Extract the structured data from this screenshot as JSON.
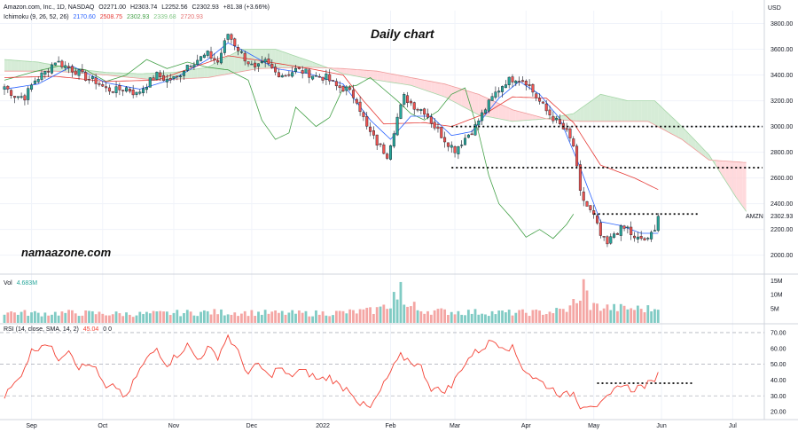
{
  "header": {
    "symbol_line": "Amazon.com, Inc., 1D, NASDAQ",
    "o": "O2271.00",
    "h": "H2303.74",
    "l": "L2252.56",
    "c": "C2302.93",
    "chg": "+81.38 (+3.66%)",
    "ichimoku_label": "Ichimoku (9, 26, 52, 26)",
    "ich_vals": [
      "2170.60",
      "2508.75",
      "2302.93",
      "2339.68",
      "2720.93"
    ],
    "ich_colors": [
      "#2962ff",
      "#e53935",
      "#43a047",
      "#a5d6a7",
      "#ef9a9a"
    ],
    "vol_label": "Vol",
    "vol_value": "4.683M",
    "rsi_label": "RSI (14, close, SMA, 14, 2)",
    "rsi_value": "45.04",
    "rsi_extra": "0  0"
  },
  "watermarks": {
    "title": "Daily chart",
    "site": "namaazone.com"
  },
  "colors": {
    "up": "#26a69a",
    "down": "#ef5350",
    "tenkan": "#2962ff",
    "kijun": "#e53935",
    "chikou": "#43a047",
    "cloud_up": "#c8e6c9",
    "cloud_down": "#ffcdd2",
    "rsi": "#f44336",
    "vol_up": "#80cbc4",
    "vol_down": "#f4a6a4"
  },
  "chart_data": {
    "type": "candlestick",
    "price_axis": {
      "unit": "USD",
      "ticks": [
        2000,
        2200,
        2400,
        2600,
        2800,
        3000,
        3200,
        3400,
        3600,
        3800
      ],
      "tick_labels": [
        "2000.00",
        "2200.00",
        "2400.00",
        "2600.00",
        "2800.00",
        "3000.00",
        "3200.00",
        "3400.00",
        "3600.00",
        "3800.00"
      ],
      "range": [
        1860,
        3900
      ]
    },
    "time_axis": {
      "labels": [
        "Sep",
        "Oct",
        "Nov",
        "Dec",
        "2022",
        "Feb",
        "Mar",
        "Apr",
        "May",
        "Jun",
        "Jul"
      ],
      "label_bars": [
        8,
        29,
        50,
        73,
        94,
        114,
        133,
        154,
        174,
        194,
        215
      ]
    },
    "last_price": {
      "value": 2302.93,
      "label": "2302.93",
      "symbol": "AMZN"
    },
    "volume_axis": {
      "ticks": [
        5,
        10,
        15
      ],
      "tick_labels": [
        "5M",
        "10M",
        "15M"
      ],
      "range": [
        0,
        17
      ]
    },
    "rsi_axis": {
      "ticks": [
        20,
        30,
        40,
        50,
        60,
        70
      ],
      "tick_labels": [
        "20.00",
        "30.00",
        "40.00",
        "50.00",
        "60.00",
        "70.00"
      ],
      "range": [
        15,
        75
      ],
      "bands": [
        30,
        50,
        70
      ]
    },
    "close_keypoints": [
      [
        0,
        3310
      ],
      [
        3,
        3240
      ],
      [
        6,
        3230
      ],
      [
        9,
        3360
      ],
      [
        12,
        3420
      ],
      [
        15,
        3510
      ],
      [
        18,
        3470
      ],
      [
        21,
        3430
      ],
      [
        24,
        3380
      ],
      [
        27,
        3350
      ],
      [
        30,
        3290
      ],
      [
        33,
        3280
      ],
      [
        36,
        3300
      ],
      [
        39,
        3250
      ],
      [
        42,
        3330
      ],
      [
        45,
        3400
      ],
      [
        48,
        3360
      ],
      [
        51,
        3380
      ],
      [
        54,
        3480
      ],
      [
        57,
        3520
      ],
      [
        60,
        3560
      ],
      [
        63,
        3500
      ],
      [
        66,
        3720
      ],
      [
        68,
        3640
      ],
      [
        71,
        3530
      ],
      [
        74,
        3440
      ],
      [
        77,
        3500
      ],
      [
        80,
        3420
      ],
      [
        83,
        3400
      ],
      [
        86,
        3440
      ],
      [
        89,
        3420
      ],
      [
        92,
        3390
      ],
      [
        95,
        3380
      ],
      [
        98,
        3310
      ],
      [
        101,
        3290
      ],
      [
        104,
        3210
      ],
      [
        107,
        2990
      ],
      [
        110,
        2870
      ],
      [
        113,
        2780
      ],
      [
        116,
        3070
      ],
      [
        118,
        3230
      ],
      [
        121,
        3160
      ],
      [
        124,
        3120
      ],
      [
        127,
        3000
      ],
      [
        130,
        2900
      ],
      [
        133,
        2820
      ],
      [
        136,
        2910
      ],
      [
        139,
        3000
      ],
      [
        142,
        3140
      ],
      [
        145,
        3260
      ],
      [
        148,
        3350
      ],
      [
        151,
        3380
      ],
      [
        154,
        3350
      ],
      [
        157,
        3230
      ],
      [
        160,
        3120
      ],
      [
        163,
        3040
      ],
      [
        166,
        2950
      ],
      [
        168,
        2850
      ],
      [
        170,
        2480
      ],
      [
        172,
        2380
      ],
      [
        174,
        2300
      ],
      [
        176,
        2150
      ],
      [
        178,
        2080
      ],
      [
        180,
        2170
      ],
      [
        182,
        2200
      ],
      [
        184,
        2210
      ],
      [
        186,
        2120
      ],
      [
        188,
        2130
      ],
      [
        190,
        2110
      ],
      [
        192,
        2220
      ],
      [
        193,
        2303
      ]
    ],
    "tenkan_keypoints": [
      [
        0,
        3290
      ],
      [
        10,
        3330
      ],
      [
        20,
        3470
      ],
      [
        30,
        3340
      ],
      [
        40,
        3290
      ],
      [
        50,
        3370
      ],
      [
        60,
        3520
      ],
      [
        66,
        3650
      ],
      [
        72,
        3570
      ],
      [
        80,
        3450
      ],
      [
        90,
        3410
      ],
      [
        100,
        3330
      ],
      [
        108,
        3050
      ],
      [
        114,
        2900
      ],
      [
        120,
        3080
      ],
      [
        126,
        3080
      ],
      [
        132,
        2930
      ],
      [
        138,
        2960
      ],
      [
        146,
        3220
      ],
      [
        152,
        3350
      ],
      [
        158,
        3250
      ],
      [
        164,
        3060
      ],
      [
        170,
        2680
      ],
      [
        176,
        2260
      ],
      [
        182,
        2230
      ],
      [
        188,
        2170
      ],
      [
        193,
        2170
      ]
    ],
    "kijun_keypoints": [
      [
        0,
        3380
      ],
      [
        15,
        3390
      ],
      [
        30,
        3350
      ],
      [
        45,
        3360
      ],
      [
        58,
        3480
      ],
      [
        66,
        3550
      ],
      [
        76,
        3510
      ],
      [
        90,
        3450
      ],
      [
        100,
        3400
      ],
      [
        106,
        3200
      ],
      [
        112,
        3020
      ],
      [
        124,
        3030
      ],
      [
        132,
        3000
      ],
      [
        142,
        3100
      ],
      [
        150,
        3230
      ],
      [
        160,
        3220
      ],
      [
        168,
        3030
      ],
      [
        176,
        2700
      ],
      [
        186,
        2600
      ],
      [
        193,
        2510
      ]
    ],
    "chikou_keypoints": [
      [
        0,
        3360
      ],
      [
        8,
        3420
      ],
      [
        16,
        3470
      ],
      [
        24,
        3440
      ],
      [
        30,
        3350
      ],
      [
        36,
        3400
      ],
      [
        42,
        3520
      ],
      [
        48,
        3450
      ],
      [
        54,
        3500
      ],
      [
        60,
        3460
      ],
      [
        66,
        3440
      ],
      [
        72,
        3360
      ],
      [
        76,
        3050
      ],
      [
        80,
        2900
      ],
      [
        84,
        2950
      ],
      [
        86,
        3150
      ],
      [
        92,
        3000
      ],
      [
        96,
        3070
      ],
      [
        100,
        3300
      ],
      [
        104,
        3320
      ],
      [
        108,
        3380
      ],
      [
        112,
        3290
      ],
      [
        116,
        3200
      ],
      [
        120,
        3100
      ],
      [
        124,
        3050
      ],
      [
        128,
        3120
      ],
      [
        132,
        3250
      ],
      [
        136,
        3300
      ],
      [
        140,
        2950
      ],
      [
        143,
        2620
      ],
      [
        146,
        2400
      ],
      [
        150,
        2280
      ],
      [
        154,
        2140
      ],
      [
        158,
        2200
      ],
      [
        162,
        2130
      ],
      [
        166,
        2240
      ],
      [
        168,
        2320
      ]
    ],
    "spanA_keypoints": [
      [
        0,
        3520
      ],
      [
        10,
        3500
      ],
      [
        20,
        3450
      ],
      [
        30,
        3420
      ],
      [
        40,
        3410
      ],
      [
        50,
        3420
      ],
      [
        60,
        3460
      ],
      [
        70,
        3600
      ],
      [
        80,
        3600
      ],
      [
        90,
        3510
      ],
      [
        100,
        3410
      ],
      [
        110,
        3360
      ],
      [
        120,
        3320
      ],
      [
        130,
        3230
      ],
      [
        140,
        3090
      ],
      [
        150,
        3040
      ],
      [
        160,
        3060
      ],
      [
        168,
        3100
      ],
      [
        176,
        3250
      ],
      [
        184,
        3200
      ],
      [
        192,
        3200
      ],
      [
        200,
        3000
      ],
      [
        208,
        2780
      ],
      [
        216,
        2450
      ],
      [
        219,
        2340
      ]
    ],
    "spanB_keypoints": [
      [
        0,
        3430
      ],
      [
        15,
        3430
      ],
      [
        30,
        3400
      ],
      [
        45,
        3360
      ],
      [
        60,
        3380
      ],
      [
        75,
        3450
      ],
      [
        90,
        3460
      ],
      [
        100,
        3450
      ],
      [
        110,
        3430
      ],
      [
        120,
        3380
      ],
      [
        130,
        3330
      ],
      [
        140,
        3250
      ],
      [
        150,
        3130
      ],
      [
        160,
        3060
      ],
      [
        170,
        3040
      ],
      [
        180,
        3040
      ],
      [
        190,
        3040
      ],
      [
        200,
        2900
      ],
      [
        208,
        2740
      ],
      [
        219,
        2720
      ]
    ],
    "rsi_keypoints": [
      [
        0,
        30
      ],
      [
        4,
        40
      ],
      [
        8,
        58
      ],
      [
        12,
        64
      ],
      [
        16,
        54
      ],
      [
        19,
        60
      ],
      [
        22,
        48
      ],
      [
        26,
        50
      ],
      [
        30,
        34
      ],
      [
        33,
        36
      ],
      [
        36,
        28
      ],
      [
        39,
        43
      ],
      [
        42,
        53
      ],
      [
        45,
        60
      ],
      [
        48,
        50
      ],
      [
        51,
        56
      ],
      [
        54,
        62
      ],
      [
        57,
        53
      ],
      [
        60,
        60
      ],
      [
        63,
        55
      ],
      [
        66,
        68
      ],
      [
        69,
        57
      ],
      [
        72,
        44
      ],
      [
        75,
        50
      ],
      [
        78,
        42
      ],
      [
        81,
        48
      ],
      [
        84,
        42
      ],
      [
        87,
        46
      ],
      [
        90,
        44
      ],
      [
        93,
        40
      ],
      [
        96,
        42
      ],
      [
        99,
        36
      ],
      [
        102,
        34
      ],
      [
        105,
        25
      ],
      [
        108,
        22
      ],
      [
        111,
        33
      ],
      [
        114,
        45
      ],
      [
        117,
        55
      ],
      [
        120,
        52
      ],
      [
        123,
        48
      ],
      [
        126,
        35
      ],
      [
        129,
        33
      ],
      [
        132,
        36
      ],
      [
        135,
        48
      ],
      [
        138,
        56
      ],
      [
        141,
        60
      ],
      [
        144,
        65
      ],
      [
        147,
        62
      ],
      [
        150,
        60
      ],
      [
        153,
        48
      ],
      [
        156,
        42
      ],
      [
        159,
        38
      ],
      [
        162,
        34
      ],
      [
        165,
        30
      ],
      [
        168,
        32
      ],
      [
        170,
        24
      ],
      [
        173,
        25
      ],
      [
        176,
        24
      ],
      [
        179,
        30
      ],
      [
        182,
        38
      ],
      [
        185,
        34
      ],
      [
        188,
        36
      ],
      [
        191,
        38
      ],
      [
        193,
        45
      ]
    ],
    "volume_keypoints": [
      [
        0,
        3.6
      ],
      [
        10,
        3.2
      ],
      [
        20,
        3.4
      ],
      [
        30,
        3.1
      ],
      [
        40,
        3.0
      ],
      [
        50,
        3.3
      ],
      [
        60,
        3.6
      ],
      [
        70,
        3.5
      ],
      [
        80,
        3.3
      ],
      [
        90,
        3.2
      ],
      [
        100,
        3.5
      ],
      [
        110,
        4.2
      ],
      [
        116,
        7.5
      ],
      [
        120,
        4.5
      ],
      [
        130,
        3.8
      ],
      [
        140,
        3.6
      ],
      [
        150,
        3.4
      ],
      [
        160,
        3.6
      ],
      [
        166,
        4.5
      ],
      [
        170,
        6.5
      ],
      [
        175,
        5.5
      ],
      [
        180,
        5.0
      ],
      [
        186,
        4.8
      ],
      [
        193,
        4.683
      ]
    ],
    "volume_spikes": [
      [
        117,
        14.5
      ],
      [
        115,
        11
      ],
      [
        171,
        15.5
      ],
      [
        172,
        11.5
      ],
      [
        168,
        8.5
      ],
      [
        121,
        7.5
      ],
      [
        110,
        5.6
      ]
    ],
    "annotations": {
      "resistance_levels": [
        {
          "value": 3000,
          "from_bar": 132
        },
        {
          "value": 2680,
          "from_bar": 132
        },
        {
          "value": 2320,
          "from_bar": 174
        }
      ],
      "rsi_level": {
        "value": 38,
        "from_bar": 175
      }
    }
  }
}
